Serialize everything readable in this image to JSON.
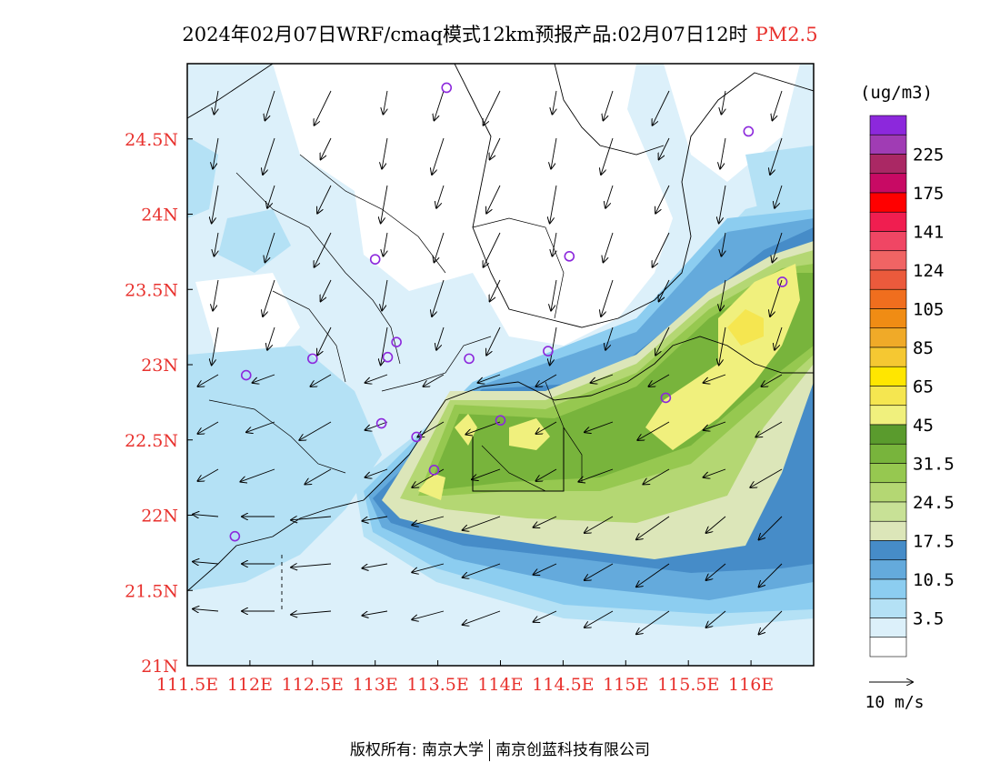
{
  "title": {
    "main": "2024年02月07日WRF/cmaq模式12km预报产品:02月07日12时",
    "pollutant": "PM2.5"
  },
  "axes": {
    "x_ticks": [
      "111.5E",
      "112E",
      "112.5E",
      "113E",
      "113.5E",
      "114E",
      "114.5E",
      "115E",
      "115.5E",
      "116E"
    ],
    "y_ticks": [
      "24.5N",
      "24N",
      "23.5N",
      "23N",
      "22.5N",
      "22N",
      "21.5N",
      "21N"
    ]
  },
  "legend": {
    "unit": "(ug/m3)",
    "colors": [
      "#ffffff",
      "#dcf0fa",
      "#b4e1f5",
      "#8ccdf0",
      "#64aadc",
      "#468cc8",
      "#dce6b9",
      "#c8e196",
      "#b4d773",
      "#96c850",
      "#78b43c",
      "#5a9b2d",
      "#f0f07d",
      "#f5e650",
      "#ffe600",
      "#f5c832",
      "#f0aa28",
      "#f08c14",
      "#f06e1e",
      "#eb5a3c",
      "#f06464",
      "#f04664",
      "#f01e50",
      "#ff0000",
      "#c80a64",
      "#aa2864",
      "#a03cb4",
      "#8c28dc"
    ],
    "labels": [
      {
        "text": "3.5",
        "index": 1
      },
      {
        "text": "10.5",
        "index": 3
      },
      {
        "text": "17.5",
        "index": 5
      },
      {
        "text": "24.5",
        "index": 7
      },
      {
        "text": "31.5",
        "index": 9
      },
      {
        "text": "45",
        "index": 11
      },
      {
        "text": "65",
        "index": 13
      },
      {
        "text": "85",
        "index": 15
      },
      {
        "text": "105",
        "index": 17
      },
      {
        "text": "124",
        "index": 19
      },
      {
        "text": "141",
        "index": 21
      },
      {
        "text": "175",
        "index": 23
      },
      {
        "text": "225",
        "index": 25
      }
    ],
    "wind_scale_label": "10 m/s"
  },
  "copyright": {
    "prefix": "版权所有: 南京大学",
    "suffix": "南京创蓝科技有限公司"
  },
  "stations": [
    [
      113.57,
      24.84
    ],
    [
      115.98,
      24.55
    ],
    [
      113.0,
      23.7
    ],
    [
      114.55,
      23.72
    ],
    [
      116.25,
      23.55
    ],
    [
      111.97,
      22.93
    ],
    [
      112.5,
      23.04
    ],
    [
      113.1,
      23.05
    ],
    [
      113.17,
      23.15
    ],
    [
      113.75,
      23.04
    ],
    [
      114.38,
      23.09
    ],
    [
      115.32,
      22.78
    ],
    [
      113.05,
      22.61
    ],
    [
      113.33,
      22.52
    ],
    [
      114.0,
      22.63
    ],
    [
      113.47,
      22.3
    ],
    [
      111.88,
      21.86
    ]
  ]
}
